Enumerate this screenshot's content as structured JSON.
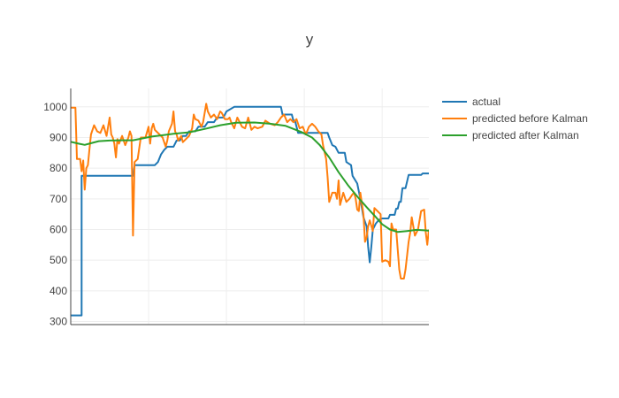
{
  "chart_data": {
    "type": "line",
    "title": "y",
    "xlabel": "",
    "ylabel": "",
    "xlim": [
      0,
      230
    ],
    "ylim": [
      290,
      1060
    ],
    "x_ticks": [
      50,
      100,
      150,
      200
    ],
    "y_ticks": [
      300,
      400,
      500,
      600,
      700,
      800,
      900,
      1000
    ],
    "x_tick_labels_shown": false,
    "grid": true,
    "legend_position": "right",
    "series": [
      {
        "name": "actual",
        "color": "#1f77b4",
        "points": [
          [
            0,
            320
          ],
          [
            7,
            320
          ],
          [
            7,
            775
          ],
          [
            40,
            775
          ],
          [
            41,
            810
          ],
          [
            54,
            810
          ],
          [
            56,
            820
          ],
          [
            58,
            845
          ],
          [
            60,
            860
          ],
          [
            62,
            870
          ],
          [
            66,
            870
          ],
          [
            68,
            890
          ],
          [
            70,
            890
          ],
          [
            72,
            905
          ],
          [
            74,
            905
          ],
          [
            76,
            920
          ],
          [
            80,
            920
          ],
          [
            82,
            935
          ],
          [
            86,
            935
          ],
          [
            88,
            950
          ],
          [
            92,
            950
          ],
          [
            94,
            965
          ],
          [
            98,
            965
          ],
          [
            100,
            985
          ],
          [
            105,
            1000
          ],
          [
            135,
            1000
          ],
          [
            136,
            975
          ],
          [
            142,
            975
          ],
          [
            143,
            955
          ],
          [
            144,
            955
          ],
          [
            146,
            915
          ],
          [
            165,
            915
          ],
          [
            166,
            900
          ],
          [
            168,
            875
          ],
          [
            170,
            870
          ],
          [
            172,
            850
          ],
          [
            176,
            850
          ],
          [
            177,
            820
          ],
          [
            180,
            810
          ],
          [
            181,
            775
          ],
          [
            184,
            750
          ],
          [
            186,
            700
          ],
          [
            188,
            640
          ],
          [
            190,
            610
          ],
          [
            191,
            545
          ],
          [
            192,
            493
          ],
          [
            193,
            540
          ],
          [
            194,
            600
          ],
          [
            196,
            620
          ],
          [
            198,
            632
          ],
          [
            200,
            636
          ],
          [
            204,
            636
          ],
          [
            205,
            648
          ],
          [
            208,
            648
          ],
          [
            209,
            668
          ],
          [
            210,
            668
          ],
          [
            211,
            690
          ],
          [
            212,
            690
          ],
          [
            213,
            735
          ],
          [
            215,
            735
          ],
          [
            217,
            778
          ],
          [
            225,
            778
          ],
          [
            226,
            783
          ],
          [
            230,
            783
          ]
        ]
      },
      {
        "name": "predicted before Kalman",
        "color": "#ff7f0e",
        "points": [
          [
            0,
            997
          ],
          [
            3,
            997
          ],
          [
            4,
            830
          ],
          [
            6,
            830
          ],
          [
            7,
            790
          ],
          [
            8,
            825
          ],
          [
            9,
            730
          ],
          [
            10,
            800
          ],
          [
            11,
            810
          ],
          [
            12,
            860
          ],
          [
            13,
            910
          ],
          [
            15,
            940
          ],
          [
            17,
            920
          ],
          [
            19,
            915
          ],
          [
            21,
            940
          ],
          [
            23,
            905
          ],
          [
            25,
            965
          ],
          [
            26,
            910
          ],
          [
            27,
            900
          ],
          [
            28,
            880
          ],
          [
            29,
            835
          ],
          [
            30,
            895
          ],
          [
            31,
            880
          ],
          [
            33,
            905
          ],
          [
            35,
            875
          ],
          [
            37,
            900
          ],
          [
            38,
            920
          ],
          [
            39,
            905
          ],
          [
            40,
            580
          ],
          [
            41,
            820
          ],
          [
            43,
            830
          ],
          [
            45,
            900
          ],
          [
            47,
            900
          ],
          [
            48,
            900
          ],
          [
            50,
            935
          ],
          [
            51,
            880
          ],
          [
            52,
            930
          ],
          [
            53,
            945
          ],
          [
            54,
            925
          ],
          [
            55,
            920
          ],
          [
            57,
            910
          ],
          [
            59,
            900
          ],
          [
            61,
            870
          ],
          [
            62,
            890
          ],
          [
            63,
            920
          ],
          [
            65,
            945
          ],
          [
            66,
            985
          ],
          [
            67,
            920
          ],
          [
            68,
            910
          ],
          [
            69,
            890
          ],
          [
            71,
            905
          ],
          [
            72,
            885
          ],
          [
            74,
            895
          ],
          [
            76,
            905
          ],
          [
            78,
            930
          ],
          [
            79,
            975
          ],
          [
            80,
            960
          ],
          [
            82,
            955
          ],
          [
            84,
            935
          ],
          [
            85,
            950
          ],
          [
            87,
            1010
          ],
          [
            88,
            985
          ],
          [
            90,
            965
          ],
          [
            92,
            975
          ],
          [
            94,
            960
          ],
          [
            96,
            985
          ],
          [
            97,
            980
          ],
          [
            99,
            960
          ],
          [
            101,
            960
          ],
          [
            102,
            965
          ],
          [
            103,
            950
          ],
          [
            105,
            930
          ],
          [
            107,
            965
          ],
          [
            110,
            935
          ],
          [
            112,
            930
          ],
          [
            114,
            965
          ],
          [
            116,
            925
          ],
          [
            118,
            935
          ],
          [
            120,
            930
          ],
          [
            123,
            935
          ],
          [
            125,
            955
          ],
          [
            128,
            945
          ],
          [
            131,
            940
          ],
          [
            133,
            950
          ],
          [
            135,
            965
          ],
          [
            137,
            975
          ],
          [
            139,
            950
          ],
          [
            141,
            960
          ],
          [
            143,
            950
          ],
          [
            145,
            960
          ],
          [
            147,
            930
          ],
          [
            149,
            935
          ],
          [
            151,
            910
          ],
          [
            153,
            935
          ],
          [
            155,
            945
          ],
          [
            157,
            935
          ],
          [
            159,
            920
          ],
          [
            161,
            910
          ],
          [
            162,
            875
          ],
          [
            164,
            830
          ],
          [
            165,
            770
          ],
          [
            166,
            690
          ],
          [
            168,
            720
          ],
          [
            170,
            720
          ],
          [
            171,
            700
          ],
          [
            172,
            760
          ],
          [
            173,
            680
          ],
          [
            175,
            720
          ],
          [
            177,
            690
          ],
          [
            179,
            700
          ],
          [
            181,
            715
          ],
          [
            182,
            720
          ],
          [
            183,
            700
          ],
          [
            184,
            665
          ],
          [
            185,
            660
          ],
          [
            186,
            720
          ],
          [
            188,
            650
          ],
          [
            189,
            560
          ],
          [
            190,
            575
          ],
          [
            191,
            610
          ],
          [
            192,
            630
          ],
          [
            194,
            595
          ],
          [
            195,
            670
          ],
          [
            197,
            660
          ],
          [
            199,
            650
          ],
          [
            200,
            495
          ],
          [
            202,
            500
          ],
          [
            204,
            495
          ],
          [
            205,
            480
          ],
          [
            206,
            620
          ],
          [
            207,
            600
          ],
          [
            209,
            600
          ],
          [
            211,
            470
          ],
          [
            212,
            440
          ],
          [
            214,
            440
          ],
          [
            215,
            470
          ],
          [
            217,
            560
          ],
          [
            218,
            590
          ],
          [
            219,
            640
          ],
          [
            221,
            580
          ],
          [
            223,
            600
          ],
          [
            225,
            660
          ],
          [
            227,
            665
          ],
          [
            228,
            590
          ],
          [
            229,
            550
          ],
          [
            230,
            600
          ]
        ]
      },
      {
        "name": "predicted after Kalman",
        "color": "#2ca02c",
        "points": [
          [
            0,
            886
          ],
          [
            5,
            880
          ],
          [
            9,
            876
          ],
          [
            12,
            880
          ],
          [
            18,
            888
          ],
          [
            25,
            890
          ],
          [
            32,
            891
          ],
          [
            40,
            891
          ],
          [
            46,
            897
          ],
          [
            52,
            903
          ],
          [
            58,
            907
          ],
          [
            66,
            912
          ],
          [
            76,
            917
          ],
          [
            86,
            928
          ],
          [
            96,
            940
          ],
          [
            106,
            948
          ],
          [
            118,
            949
          ],
          [
            128,
            945
          ],
          [
            138,
            938
          ],
          [
            148,
            918
          ],
          [
            155,
            900
          ],
          [
            160,
            875
          ],
          [
            166,
            835
          ],
          [
            172,
            787
          ],
          [
            178,
            745
          ],
          [
            184,
            708
          ],
          [
            190,
            673
          ],
          [
            196,
            640
          ],
          [
            200,
            617
          ],
          [
            205,
            600
          ],
          [
            210,
            592
          ],
          [
            216,
            595
          ],
          [
            222,
            599
          ],
          [
            228,
            597
          ],
          [
            230,
            596
          ]
        ]
      }
    ]
  }
}
